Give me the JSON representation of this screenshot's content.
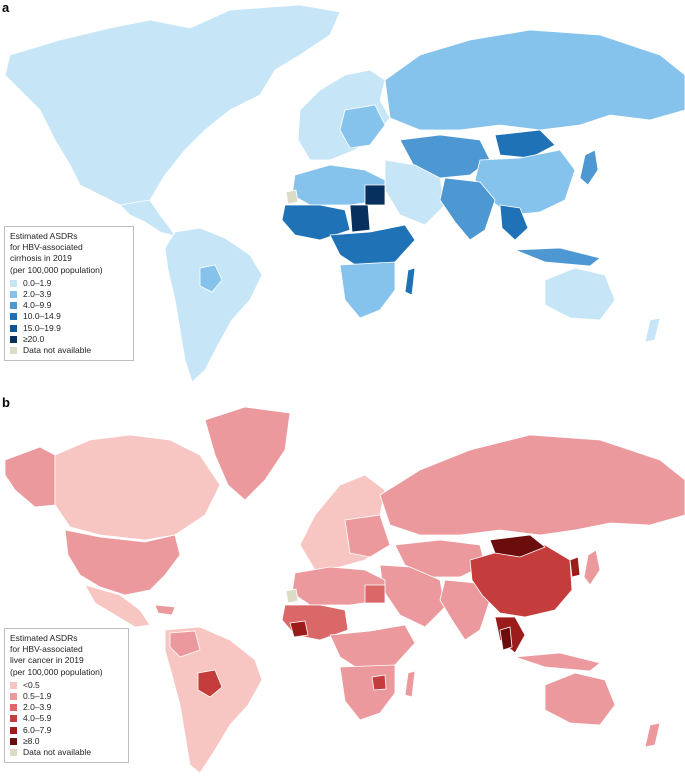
{
  "panels": [
    {
      "letter": "a",
      "legend_title_lines": [
        "Estimated ASDRs",
        "for HBV-associated",
        "cirrhosis in 2019",
        "(per 100,000 population)"
      ],
      "legend_items": [
        {
          "label": "0.0–1.9",
          "color": "#c6e6f7"
        },
        {
          "label": "2.0–3.9",
          "color": "#86c3ec"
        },
        {
          "label": "4.0–9.9",
          "color": "#4d97d2"
        },
        {
          "label": "10.0–14.9",
          "color": "#1f72b5"
        },
        {
          "label": "15.0–19.9",
          "color": "#0e5593"
        },
        {
          "label": "≥20.0",
          "color": "#08305f"
        },
        {
          "label": "Data not available",
          "color": "#dcdcc6"
        }
      ]
    },
    {
      "letter": "b",
      "legend_title_lines": [
        "Estimated ASDRs",
        "for HBV-associated",
        "liver cancer in 2019",
        "(per 100,000 population)"
      ],
      "legend_items": [
        {
          "label": "<0.5",
          "color": "#f8c6c2"
        },
        {
          "label": "0.5–1.9",
          "color": "#ec999d"
        },
        {
          "label": "2.0–3.9",
          "color": "#db6869"
        },
        {
          "label": "4.0–5.9",
          "color": "#c43c3c"
        },
        {
          "label": "6.0–7.9",
          "color": "#9c1c1c"
        },
        {
          "label": "≥8.0",
          "color": "#6b0d0d"
        },
        {
          "label": "Data not available",
          "color": "#dcdcc6"
        }
      ]
    }
  ]
}
